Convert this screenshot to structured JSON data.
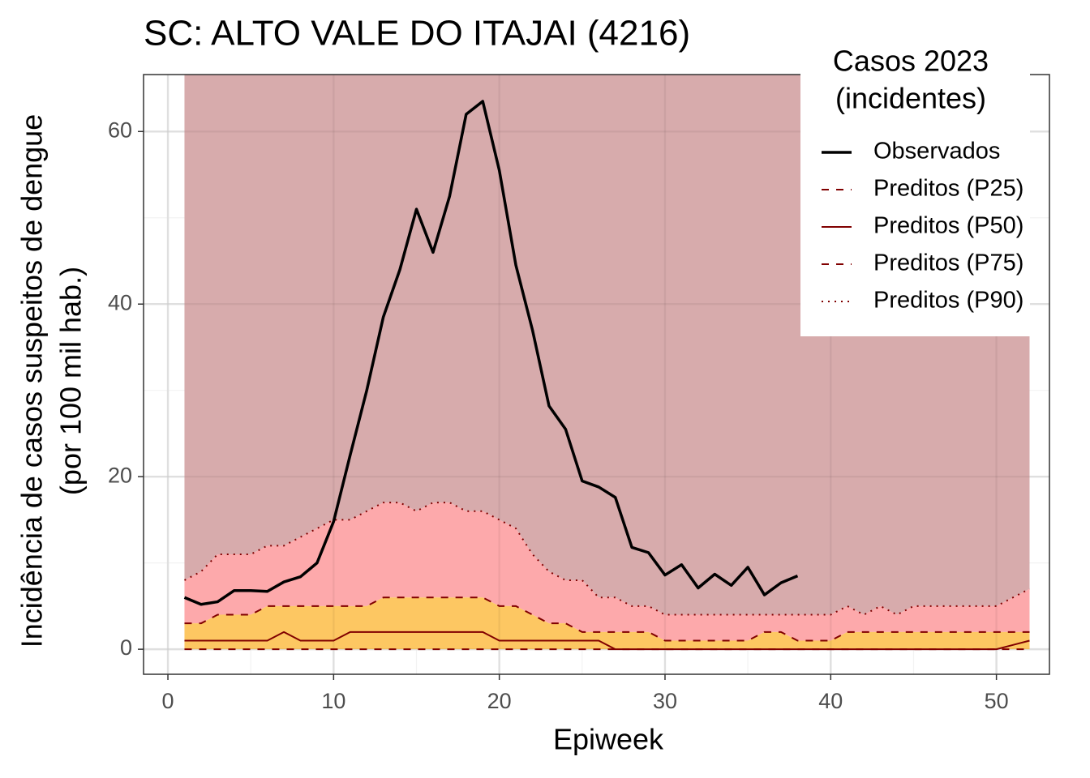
{
  "chart_data": {
    "type": "line",
    "title": "SC: ALTO VALE DO ITAJAI (4216)",
    "xlabel": "Epiweek",
    "ylabel": [
      "Incidência de casos suspeitos de dengue",
      "(por 100 mil hab.)"
    ],
    "legend_title": [
      "Casos 2023",
      "(incidentes)"
    ],
    "legend_position": "top-right",
    "grid": true,
    "xlim": [
      -1.47,
      53.2
    ],
    "xticks": [
      0,
      10,
      20,
      30,
      40,
      50
    ],
    "ylim": [
      -2.9,
      66.6
    ],
    "yticks": [
      0,
      20,
      40,
      60
    ],
    "fill_colors": [
      "#fdc45a",
      "#fda4a6",
      "#d5a6a8"
    ],
    "x": [
      1,
      2,
      3,
      4,
      5,
      6,
      7,
      8,
      9,
      10,
      11,
      12,
      13,
      14,
      15,
      16,
      17,
      18,
      19,
      20,
      21,
      22,
      23,
      24,
      25,
      26,
      27,
      28,
      29,
      30,
      31,
      32,
      33,
      34,
      35,
      36,
      37,
      38,
      39,
      40,
      41,
      42,
      43,
      44,
      45,
      46,
      47,
      48,
      49,
      50,
      51,
      52
    ],
    "series": [
      {
        "name": "Observados",
        "color": "#000000",
        "linestyle": "solid",
        "values": [
          6.0,
          5.2,
          5.5,
          6.8,
          6.8,
          6.7,
          7.8,
          8.4,
          10,
          14.8,
          22.5,
          30,
          38.5,
          44,
          51,
          46,
          52.5,
          62,
          63.5,
          55.5,
          44.5,
          37,
          28.2,
          25.5,
          19.5,
          18.8,
          17.6,
          11.8,
          11.2,
          8.6,
          9.8,
          7.1,
          8.7,
          7.4,
          9.5,
          6.3,
          7.7,
          8.5,
          null,
          null,
          null,
          null,
          null,
          null,
          null,
          null,
          null,
          null,
          null,
          null,
          null,
          null
        ]
      },
      {
        "name": "Preditos (P25)",
        "color": "#800000",
        "linestyle": "dashed",
        "values": [
          0,
          0,
          0,
          0,
          0,
          0,
          0,
          0,
          0,
          0,
          0,
          0,
          0,
          0,
          0,
          0,
          0,
          0,
          0,
          0,
          0,
          0,
          0,
          0,
          0,
          0,
          0,
          0,
          0,
          0,
          0,
          0,
          0,
          0,
          0,
          0,
          0,
          0,
          0,
          0,
          0,
          0,
          0,
          0,
          0,
          0,
          0,
          0,
          0,
          0,
          0,
          0
        ]
      },
      {
        "name": "Preditos (P50)",
        "color": "#800000",
        "linestyle": "solid",
        "values": [
          1,
          1,
          1,
          1,
          1,
          1,
          2,
          1,
          1,
          1,
          2,
          2,
          2,
          2,
          2,
          2,
          2,
          2,
          2,
          1,
          1,
          1,
          1,
          1,
          1,
          1,
          0,
          0,
          0,
          0,
          0,
          0,
          0,
          0,
          0,
          0,
          0,
          0,
          0,
          0,
          0,
          0,
          0,
          0,
          0,
          0,
          0,
          0,
          0,
          0,
          0.5,
          1
        ]
      },
      {
        "name": "Preditos (P75)",
        "color": "#800000",
        "linestyle": "dashed",
        "values": [
          3,
          3,
          4,
          4,
          4,
          5,
          5,
          5,
          5,
          5,
          5,
          5,
          6,
          6,
          6,
          6,
          6,
          6,
          6,
          5,
          5,
          4,
          3,
          3,
          2,
          2,
          2,
          2,
          2,
          1,
          1,
          1,
          1,
          1,
          1,
          2,
          2,
          1,
          1,
          1,
          2,
          2,
          2,
          2,
          2,
          2,
          2,
          2,
          2,
          2,
          2,
          2
        ]
      },
      {
        "name": "Preditos (P90)",
        "color": "#800000",
        "linestyle": "dotted",
        "values": [
          8,
          9,
          11,
          11,
          11,
          12,
          12,
          13,
          14,
          15,
          15,
          16,
          17,
          17,
          16,
          17,
          17,
          16,
          16,
          15,
          14,
          11,
          9,
          8,
          8,
          6,
          6,
          5,
          5,
          4,
          4,
          4,
          4,
          4,
          4,
          4,
          4,
          4,
          4,
          4,
          5,
          4,
          5,
          4,
          5,
          5,
          5,
          5,
          5,
          5,
          6,
          7
        ]
      }
    ]
  }
}
